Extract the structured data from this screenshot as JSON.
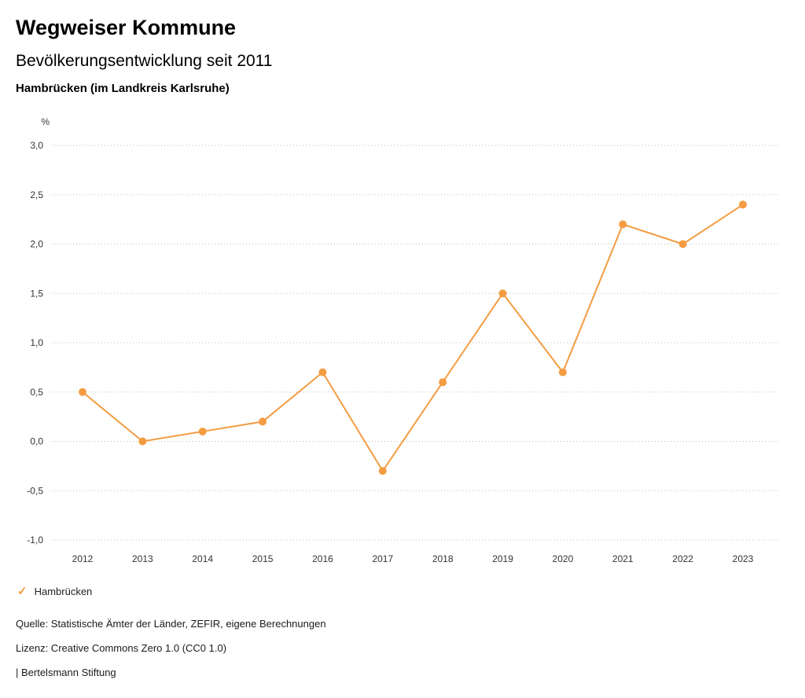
{
  "header": {
    "title": "Wegweiser Kommune",
    "subtitle": "Bevölkerungsentwicklung seit 2011",
    "location": "Hambrücken (im Landkreis Karlsruhe)"
  },
  "chart_data": {
    "type": "line",
    "x": [
      "2012",
      "2013",
      "2014",
      "2015",
      "2016",
      "2017",
      "2018",
      "2019",
      "2020",
      "2021",
      "2022",
      "2023"
    ],
    "series": [
      {
        "name": "Hambrücken",
        "values": [
          0.5,
          0.0,
          0.1,
          0.2,
          0.7,
          -0.3,
          0.6,
          1.5,
          0.7,
          2.2,
          2.0,
          2.4
        ]
      }
    ],
    "title": "Bevölkerungsentwicklung seit 2011",
    "xlabel": "",
    "ylabel": "%",
    "ylim": [
      -1.0,
      3.0
    ],
    "yticks": [
      {
        "value": 3.0,
        "label": "3,0"
      },
      {
        "value": 2.5,
        "label": "2,5"
      },
      {
        "value": 2.0,
        "label": "2,0"
      },
      {
        "value": 1.5,
        "label": "1,5"
      },
      {
        "value": 1.0,
        "label": "1,0"
      },
      {
        "value": 0.5,
        "label": "0,5"
      },
      {
        "value": 0.0,
        "label": "0,0"
      },
      {
        "value": -0.5,
        "label": "-0,5"
      },
      {
        "value": -1.0,
        "label": "-1,0"
      }
    ],
    "grid": true,
    "grid_style": "dotted",
    "line_color": "#f49c42",
    "legend_position": "bottom-left"
  },
  "legend": {
    "check_icon": "✓",
    "label": "Hambrücken",
    "color": "#f49c42"
  },
  "footer": {
    "source": "Quelle: Statistische Ämter der Länder, ZEFIR, eigene Berechnungen",
    "license": "Lizenz: Creative Commons Zero 1.0 (CC0 1.0)",
    "attribution": "| Bertelsmann Stiftung"
  }
}
